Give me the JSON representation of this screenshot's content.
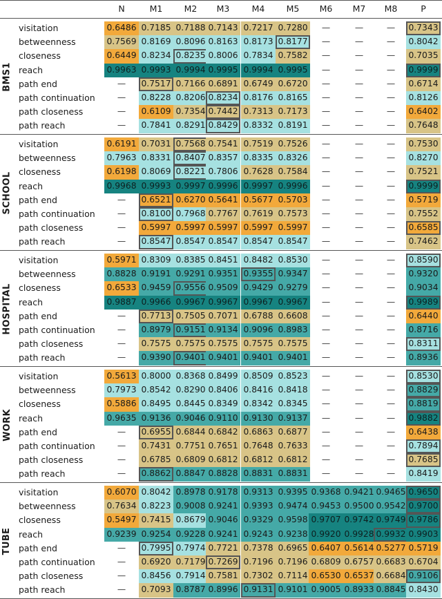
{
  "columns": [
    "N",
    "M1",
    "M2",
    "M3",
    "M4",
    "M5",
    "M6",
    "M7",
    "M8",
    "P"
  ],
  "row_labels": [
    "visitation",
    "betweenness",
    "closeness",
    "reach",
    "path end",
    "path continuation",
    "path closeness",
    "path reach"
  ],
  "empty_marker": "—",
  "colors": {
    "orange": "#f2a93b",
    "tan": "#d8c487",
    "light_cyan": "#a6e1e1",
    "teal": "#45a9a7",
    "dark_teal": "#168380",
    "box_border": "#555555"
  },
  "groups": [
    {
      "label": "BMS1",
      "rows": [
        [
          "0.6486",
          "0.7185",
          "0.7188",
          "0.7143",
          "0.7217",
          "0.7280",
          "—",
          "—",
          "—",
          "0.7343"
        ],
        [
          "0.7569",
          "0.8169",
          "0.8096",
          "0.8163",
          "0.8173",
          "0.8177",
          "—",
          "—",
          "—",
          "0.8042"
        ],
        [
          "0.6449",
          "0.8234",
          "0.8235",
          "0.8006",
          "0.7834",
          "0.7582",
          "—",
          "—",
          "—",
          "0.7035"
        ],
        [
          "0.9963",
          "0.9993",
          "0.9994",
          "0.9995",
          "0.9994",
          "0.9995",
          "—",
          "—",
          "—",
          "0.9999"
        ],
        [
          "—",
          "0.7517",
          "0.7166",
          "0.6891",
          "0.6749",
          "0.6720",
          "—",
          "—",
          "—",
          "0.6714"
        ],
        [
          "—",
          "0.8228",
          "0.8206",
          "0.8234",
          "0.8176",
          "0.8165",
          "—",
          "—",
          "—",
          "0.8126"
        ],
        [
          "—",
          "0.6109",
          "0.7354",
          "0.7442",
          "0.7313",
          "0.7173",
          "—",
          "—",
          "—",
          "0.6402"
        ],
        [
          "—",
          "0.7841",
          "0.8291",
          "0.8429",
          "0.8332",
          "0.8191",
          "—",
          "—",
          "—",
          "0.7648"
        ]
      ]
    },
    {
      "label": "SCHOOL",
      "rows": [
        [
          "0.6191",
          "0.7031",
          "0.7568",
          "0.7541",
          "0.7519",
          "0.7526",
          "—",
          "—",
          "—",
          "0.7530"
        ],
        [
          "0.7963",
          "0.8331",
          "0.8407",
          "0.8357",
          "0.8335",
          "0.8326",
          "—",
          "—",
          "—",
          "0.8270"
        ],
        [
          "0.6198",
          "0.8069",
          "0.8221",
          "0.7806",
          "0.7628",
          "0.7584",
          "—",
          "—",
          "—",
          "0.7521"
        ],
        [
          "0.9968",
          "0.9993",
          "0.9997",
          "0.9996",
          "0.9997",
          "0.9996",
          "—",
          "—",
          "—",
          "0.9999"
        ],
        [
          "—",
          "0.6521",
          "0.6270",
          "0.5641",
          "0.5677",
          "0.5703",
          "—",
          "—",
          "—",
          "0.5719"
        ],
        [
          "—",
          "0.8100",
          "0.7968",
          "0.7767",
          "0.7619",
          "0.7573",
          "—",
          "—",
          "—",
          "0.7552"
        ],
        [
          "—",
          "0.5997",
          "0.5997",
          "0.5997",
          "0.5997",
          "0.5997",
          "—",
          "—",
          "—",
          "0.6585"
        ],
        [
          "—",
          "0.8547",
          "0.8547",
          "0.8547",
          "0.8547",
          "0.8547",
          "—",
          "—",
          "—",
          "0.7462"
        ]
      ]
    },
    {
      "label": "HOSPITAL",
      "rows": [
        [
          "0.5971",
          "0.8309",
          "0.8385",
          "0.8451",
          "0.8482",
          "0.8530",
          "—",
          "—",
          "—",
          "0.8590"
        ],
        [
          "0.8828",
          "0.9191",
          "0.9291",
          "0.9351",
          "0.9355",
          "0.9347",
          "—",
          "—",
          "—",
          "0.9320"
        ],
        [
          "0.6533",
          "0.9459",
          "0.9556",
          "0.9509",
          "0.9429",
          "0.9279",
          "—",
          "—",
          "—",
          "0.9034"
        ],
        [
          "0.9887",
          "0.9966",
          "0.9967",
          "0.9967",
          "0.9967",
          "0.9967",
          "—",
          "—",
          "—",
          "0.9989"
        ],
        [
          "—",
          "0.7713",
          "0.7505",
          "0.7071",
          "0.6788",
          "0.6608",
          "—",
          "—",
          "—",
          "0.6440"
        ],
        [
          "—",
          "0.8979",
          "0.9151",
          "0.9134",
          "0.9096",
          "0.8983",
          "—",
          "—",
          "—",
          "0.8716"
        ],
        [
          "—",
          "0.7575",
          "0.7575",
          "0.7575",
          "0.7575",
          "0.7575",
          "—",
          "—",
          "—",
          "0.8311"
        ],
        [
          "—",
          "0.9390",
          "0.9401",
          "0.9401",
          "0.9401",
          "0.9401",
          "—",
          "—",
          "—",
          "0.8936"
        ]
      ]
    },
    {
      "label": "WORK",
      "rows": [
        [
          "0.5613",
          "0.8000",
          "0.8368",
          "0.8499",
          "0.8509",
          "0.8523",
          "—",
          "—",
          "—",
          "0.8530"
        ],
        [
          "0.7973",
          "0.8542",
          "0.8290",
          "0.8406",
          "0.8416",
          "0.8418",
          "—",
          "—",
          "—",
          "0.8829"
        ],
        [
          "0.5886",
          "0.8495",
          "0.8445",
          "0.8349",
          "0.8342",
          "0.8345",
          "—",
          "—",
          "—",
          "0.8819"
        ],
        [
          "0.9635",
          "0.9136",
          "0.9046",
          "0.9110",
          "0.9130",
          "0.9137",
          "—",
          "—",
          "—",
          "0.9882"
        ],
        [
          "—",
          "0.6955",
          "0.6844",
          "0.6842",
          "0.6863",
          "0.6877",
          "—",
          "—",
          "—",
          "0.6438"
        ],
        [
          "—",
          "0.7431",
          "0.7751",
          "0.7651",
          "0.7648",
          "0.7633",
          "—",
          "—",
          "—",
          "0.7894"
        ],
        [
          "—",
          "0.6785",
          "0.6809",
          "0.6812",
          "0.6812",
          "0.6812",
          "—",
          "—",
          "—",
          "0.7685"
        ],
        [
          "—",
          "0.8862",
          "0.8847",
          "0.8828",
          "0.8831",
          "0.8831",
          "—",
          "—",
          "—",
          "0.8419"
        ]
      ]
    },
    {
      "label": "TUBE",
      "rows": [
        [
          "0.6070",
          "0.8042",
          "0.8978",
          "0.9178",
          "0.9313",
          "0.9395",
          "0.9368",
          "0.9421",
          "0.9465",
          "0.9650"
        ],
        [
          "0.7634",
          "0.8223",
          "0.9008",
          "0.9241",
          "0.9393",
          "0.9474",
          "0.9453",
          "0.9500",
          "0.9542",
          "0.9700"
        ],
        [
          "0.5497",
          "0.7415",
          "0.8679",
          "0.9046",
          "0.9329",
          "0.9598",
          "0.9707",
          "0.9742",
          "0.9749",
          "0.9786"
        ],
        [
          "0.9239",
          "0.9254",
          "0.9228",
          "0.9241",
          "0.9243",
          "0.9238",
          "0.9920",
          "0.9928",
          "0.9932",
          "0.9903"
        ],
        [
          "—",
          "0.7995",
          "0.7974",
          "0.7721",
          "0.7378",
          "0.6965",
          "0.6407",
          "0.5614",
          "0.5277",
          "0.5719"
        ],
        [
          "—",
          "0.6920",
          "0.7179",
          "0.7269",
          "0.7196",
          "0.7196",
          "0.6809",
          "0.6757",
          "0.6683",
          "0.6704"
        ],
        [
          "—",
          "0.8456",
          "0.7914",
          "0.7581",
          "0.7302",
          "0.7114",
          "0.6530",
          "0.6537",
          "0.6684",
          "0.9106"
        ],
        [
          "—",
          "0.7093",
          "0.8787",
          "0.8996",
          "0.9131",
          "0.9101",
          "0.9005",
          "0.8933",
          "0.8845",
          "0.8430"
        ]
      ]
    }
  ],
  "boxed_cells": [
    [
      0,
      0,
      9
    ],
    [
      0,
      1,
      5
    ],
    [
      0,
      2,
      2
    ],
    [
      0,
      3,
      9
    ],
    [
      0,
      4,
      1
    ],
    [
      0,
      5,
      3
    ],
    [
      0,
      6,
      3
    ],
    [
      0,
      7,
      3
    ],
    [
      1,
      0,
      2
    ],
    [
      1,
      1,
      2
    ],
    [
      1,
      2,
      2
    ],
    [
      1,
      3,
      9
    ],
    [
      1,
      4,
      1
    ],
    [
      1,
      5,
      1
    ],
    [
      1,
      6,
      9
    ],
    [
      1,
      7,
      1
    ],
    [
      2,
      0,
      9
    ],
    [
      2,
      1,
      4
    ],
    [
      2,
      2,
      2
    ],
    [
      2,
      3,
      9
    ],
    [
      2,
      4,
      1
    ],
    [
      2,
      5,
      2
    ],
    [
      2,
      6,
      9
    ],
    [
      2,
      7,
      2
    ],
    [
      3,
      0,
      9
    ],
    [
      3,
      1,
      9
    ],
    [
      3,
      2,
      9
    ],
    [
      3,
      3,
      9
    ],
    [
      3,
      4,
      1
    ],
    [
      3,
      5,
      9
    ],
    [
      3,
      6,
      9
    ],
    [
      3,
      7,
      1
    ],
    [
      4,
      0,
      9
    ],
    [
      4,
      1,
      9
    ],
    [
      4,
      2,
      9
    ],
    [
      4,
      3,
      8
    ],
    [
      4,
      4,
      1
    ],
    [
      4,
      5,
      3
    ],
    [
      4,
      6,
      9
    ],
    [
      4,
      7,
      4
    ]
  ]
}
